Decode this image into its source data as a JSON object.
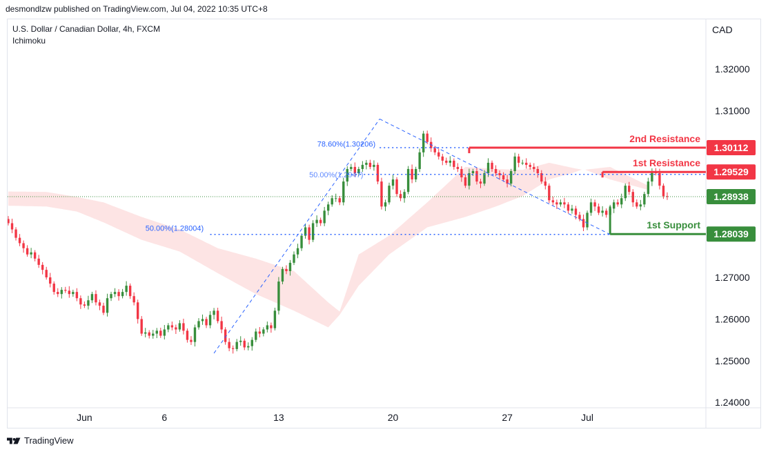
{
  "header": {
    "published_by": "desmondlzw published on TradingView.com, Jul 04, 2022 10:35 UTC+8"
  },
  "legend": {
    "symbol": "U.S. Dollar / Canadian Dollar, 4h, FXCM",
    "indicator": "Ichimoku"
  },
  "footer": {
    "brand": "TradingView"
  },
  "chart_data": {
    "type": "candlestick",
    "currency_label": "CAD",
    "y_ticks": [
      "1.32000",
      "1.31000",
      "1.30000",
      "1.29000",
      "1.28000",
      "1.27000",
      "1.26000",
      "1.25000",
      "1.24000"
    ],
    "y_tick_values": [
      1.32,
      1.31,
      1.3,
      1.29,
      1.28,
      1.27,
      1.26,
      1.25,
      1.24
    ],
    "x_ticks": [
      "Jun",
      "6",
      "13",
      "20",
      "27",
      "Jul"
    ],
    "x_tick_index": [
      20,
      41,
      71,
      101,
      131,
      152
    ],
    "last_price": "1.28938",
    "last_price_value": 1.28938,
    "levels": [
      {
        "name": "2nd Resistance",
        "value": 1.30112,
        "label": "1.30112",
        "color": "#f23645",
        "start_index": 121
      },
      {
        "name": "1st Resistance",
        "value": 1.29529,
        "label": "1.29529",
        "color": "#f23645",
        "start_index": 156
      },
      {
        "name": "1st Support",
        "value": 1.28039,
        "label": "1.28039",
        "color": "#388e3c",
        "start_index": 158
      }
    ],
    "fib_labels": [
      {
        "text": "78.60%(1.30206)",
        "value": 1.30206
      },
      {
        "text": "50.00%(1.2947)",
        "value": 1.2947
      },
      {
        "text": "50.00%(1.28004)",
        "value": 1.28004
      }
    ],
    "up_color": "#388e3c",
    "down_color": "#f23645",
    "bear_cloud_color": "#fde4e4",
    "bull_cloud_color": "#e8f5e9",
    "cloud": [
      {
        "i": 0,
        "a": 1.2872,
        "b": 1.2906
      },
      {
        "i": 10,
        "a": 1.287,
        "b": 1.2905
      },
      {
        "i": 18,
        "a": 1.2858,
        "b": 1.2893
      },
      {
        "i": 25,
        "a": 1.2832,
        "b": 1.288
      },
      {
        "i": 35,
        "a": 1.279,
        "b": 1.2845
      },
      {
        "i": 45,
        "a": 1.2762,
        "b": 1.2815
      },
      {
        "i": 55,
        "a": 1.271,
        "b": 1.277
      },
      {
        "i": 65,
        "a": 1.266,
        "b": 1.2745
      },
      {
        "i": 75,
        "a": 1.262,
        "b": 1.2715
      },
      {
        "i": 84,
        "a": 1.258,
        "b": 1.264
      },
      {
        "i": 87,
        "a": 1.261,
        "b": 1.2618
      },
      {
        "i": 92,
        "a": 1.268,
        "b": 1.2755
      },
      {
        "i": 100,
        "a": 1.2755,
        "b": 1.28
      },
      {
        "i": 110,
        "a": 1.282,
        "b": 1.288
      },
      {
        "i": 120,
        "a": 1.2845,
        "b": 1.2965
      },
      {
        "i": 128,
        "a": 1.287,
        "b": 1.296
      },
      {
        "i": 135,
        "a": 1.2895,
        "b": 1.2958
      },
      {
        "i": 142,
        "a": 1.2935,
        "b": 1.2975
      },
      {
        "i": 148,
        "a": 1.295,
        "b": 1.2963
      },
      {
        "i": 151,
        "a": 1.296,
        "b": 1.2958
      },
      {
        "i": 158,
        "a": 1.2935,
        "b": 1.2965
      },
      {
        "i": 168,
        "a": 1.291,
        "b": 1.292
      }
    ],
    "closes": [
      1.283,
      1.2815,
      1.2795,
      1.2782,
      1.277,
      1.2755,
      1.276,
      1.2745,
      1.273,
      1.2718,
      1.27,
      1.2685,
      1.2665,
      1.266,
      1.267,
      1.2668,
      1.266,
      1.2665,
      1.265,
      1.2635,
      1.2632,
      1.2645,
      1.266,
      1.264,
      1.2632,
      1.2615,
      1.265,
      1.266,
      1.2665,
      1.2655,
      1.2665,
      1.268,
      1.2655,
      1.264,
      1.26,
      1.2565,
      1.2568,
      1.256,
      1.2565,
      1.2572,
      1.256,
      1.2575,
      1.2585,
      1.258,
      1.2575,
      1.259,
      1.2572,
      1.255,
      1.2545,
      1.258,
      1.2595,
      1.26,
      1.2585,
      1.261,
      1.262,
      1.2595,
      1.2575,
      1.2545,
      1.253,
      1.2528,
      1.2545,
      1.2548,
      1.2532,
      1.2535,
      1.255,
      1.257,
      1.2565,
      1.2575,
      1.2585,
      1.2578,
      1.262,
      1.269,
      1.272,
      1.2715,
      1.2735,
      1.2755,
      1.277,
      1.28,
      1.282,
      1.279,
      1.283,
      1.2838,
      1.283,
      1.286,
      1.2875,
      1.289,
      1.289,
      1.288,
      1.293,
      1.296,
      1.2965,
      1.295,
      1.296,
      1.297,
      1.2975,
      1.2965,
      1.297,
      1.293,
      1.287,
      1.288,
      1.292,
      1.2935,
      1.29,
      1.289,
      1.2905,
      1.296,
      1.2935,
      1.296,
      1.3,
      1.3045,
      1.3025,
      1.301,
      1.3,
      1.299,
      1.298,
      1.2975,
      1.298,
      1.2965,
      1.296,
      1.294,
      1.292,
      1.295,
      1.2955,
      1.293,
      1.2925,
      1.295,
      1.2975,
      1.296,
      1.295,
      1.2945,
      1.2935,
      1.2925,
      1.2955,
      1.299,
      1.2975,
      1.2975,
      1.297,
      1.2965,
      1.296,
      1.295,
      1.293,
      1.292,
      1.2885,
      1.288,
      1.2875,
      1.288,
      1.2875,
      1.286,
      1.2865,
      1.285,
      1.284,
      1.282,
      1.2855,
      1.288,
      1.287,
      1.2855,
      1.286,
      1.285,
      1.2865,
      1.288,
      1.2875,
      1.289,
      1.292,
      1.2905,
      1.288,
      1.287,
      1.2875,
      1.29,
      1.293,
      1.2955,
      1.295,
      1.292,
      1.2895,
      1.2893
    ]
  }
}
